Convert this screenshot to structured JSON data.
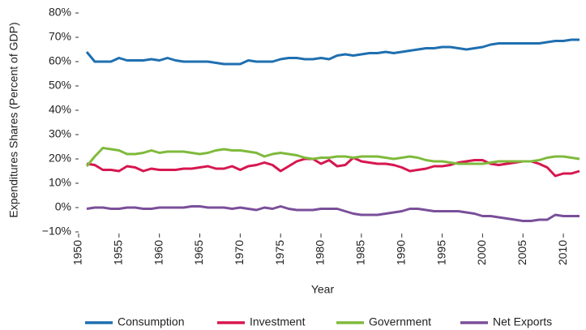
{
  "chart_data": {
    "type": "line",
    "x_label": "Year",
    "y_label": "Expenditures Shares (Percent of GDP)",
    "x": [
      1951,
      1952,
      1953,
      1954,
      1955,
      1956,
      1957,
      1958,
      1959,
      1960,
      1961,
      1962,
      1963,
      1964,
      1965,
      1966,
      1967,
      1968,
      1969,
      1970,
      1971,
      1972,
      1973,
      1974,
      1975,
      1976,
      1977,
      1978,
      1979,
      1980,
      1981,
      1982,
      1983,
      1984,
      1985,
      1986,
      1987,
      1988,
      1989,
      1990,
      1991,
      1992,
      1993,
      1994,
      1995,
      1996,
      1997,
      1998,
      1999,
      2000,
      2001,
      2002,
      2003,
      2004,
      2005,
      2006,
      2007,
      2008,
      2009,
      2010,
      2011,
      2012
    ],
    "series": [
      {
        "name": "Consumption",
        "color": "#1f6fb0",
        "values": [
          64,
          60,
          60,
          60,
          61.5,
          60.5,
          60.5,
          60.5,
          61,
          60.5,
          61.5,
          60.5,
          60,
          60,
          60,
          60,
          59.5,
          59,
          59,
          59,
          60.5,
          60,
          60,
          60,
          61,
          61.5,
          61.5,
          61,
          61,
          61.5,
          61,
          62.5,
          63,
          62.5,
          63,
          63.5,
          63.5,
          64,
          63.5,
          64,
          64.5,
          65,
          65.5,
          65.5,
          66,
          66,
          65.5,
          65,
          65.5,
          66,
          67,
          67.5,
          67.5,
          67.5,
          67.5,
          67.5,
          67.5,
          68,
          68.5,
          68.5,
          69,
          69
        ]
      },
      {
        "name": "Investment",
        "color": "#d6174f",
        "values": [
          18,
          17.5,
          15.5,
          15.5,
          15,
          17,
          16.5,
          15,
          16,
          15.5,
          15.5,
          15.5,
          16,
          16,
          16.5,
          17,
          16,
          16,
          17,
          15.5,
          17,
          17.5,
          18.5,
          17.5,
          15,
          17,
          19,
          20,
          20,
          18,
          19.5,
          17,
          17.5,
          20.5,
          19,
          18.5,
          18,
          18,
          17.5,
          16.5,
          15,
          15.5,
          16,
          17,
          17,
          17.5,
          18.5,
          19,
          19.5,
          19.5,
          18,
          17.5,
          18,
          18.5,
          19,
          19,
          18,
          16.5,
          13,
          14,
          14,
          15
        ]
      },
      {
        "name": "Government",
        "color": "#7fba3c",
        "values": [
          17,
          21,
          24.5,
          24,
          23.5,
          22,
          22,
          22.5,
          23.5,
          22.5,
          23,
          23,
          23,
          22.5,
          22,
          22.5,
          23.5,
          24,
          23.5,
          23.5,
          23,
          22.5,
          21,
          22,
          22.5,
          22,
          21.5,
          20.5,
          20,
          20.5,
          20.5,
          21,
          21,
          20.5,
          21,
          21,
          21,
          20.5,
          20,
          20.5,
          21,
          20.5,
          19.5,
          19,
          19,
          18.5,
          18,
          18,
          18,
          18,
          18.5,
          19,
          19,
          19,
          19,
          19,
          19.5,
          20.5,
          21,
          21,
          20.5,
          20
        ]
      },
      {
        "name": "Net Exports",
        "color": "#7a4f9a",
        "values": [
          -0.5,
          0,
          0,
          -0.5,
          -0.5,
          0,
          0,
          -0.5,
          -0.5,
          0,
          0,
          0,
          0,
          0.5,
          0.5,
          0,
          0,
          0,
          -0.5,
          0,
          -0.5,
          -1,
          0,
          -0.5,
          0.5,
          -0.5,
          -1,
          -1,
          -1,
          -0.5,
          -0.5,
          -0.5,
          -1.5,
          -2.5,
          -3,
          -3,
          -3,
          -2.5,
          -2,
          -1.5,
          -0.5,
          -0.5,
          -1,
          -1.5,
          -1.5,
          -1.5,
          -1.5,
          -2,
          -2.5,
          -3.5,
          -3.5,
          -4,
          -4.5,
          -5,
          -5.5,
          -5.5,
          -5,
          -5,
          -3,
          -3.5,
          -3.5,
          -3.5
        ]
      }
    ],
    "xlim": [
      1950,
      2012.5
    ],
    "xticks": [
      1950,
      1955,
      1960,
      1965,
      1970,
      1975,
      1980,
      1985,
      1990,
      1995,
      2000,
      2005,
      2010
    ],
    "ylim": [
      -10,
      80
    ],
    "yticks": [
      {
        "value": -10,
        "label": "−10%"
      },
      {
        "value": 0,
        "label": "0%"
      },
      {
        "value": 10,
        "label": "10%"
      },
      {
        "value": 20,
        "label": "20%"
      },
      {
        "value": 30,
        "label": "30%"
      },
      {
        "value": 40,
        "label": "40%"
      },
      {
        "value": 50,
        "label": "50%"
      },
      {
        "value": 60,
        "label": "60%"
      },
      {
        "value": 70,
        "label": "70%"
      },
      {
        "value": 80,
        "label": "80%"
      }
    ],
    "legend": "bottom"
  }
}
